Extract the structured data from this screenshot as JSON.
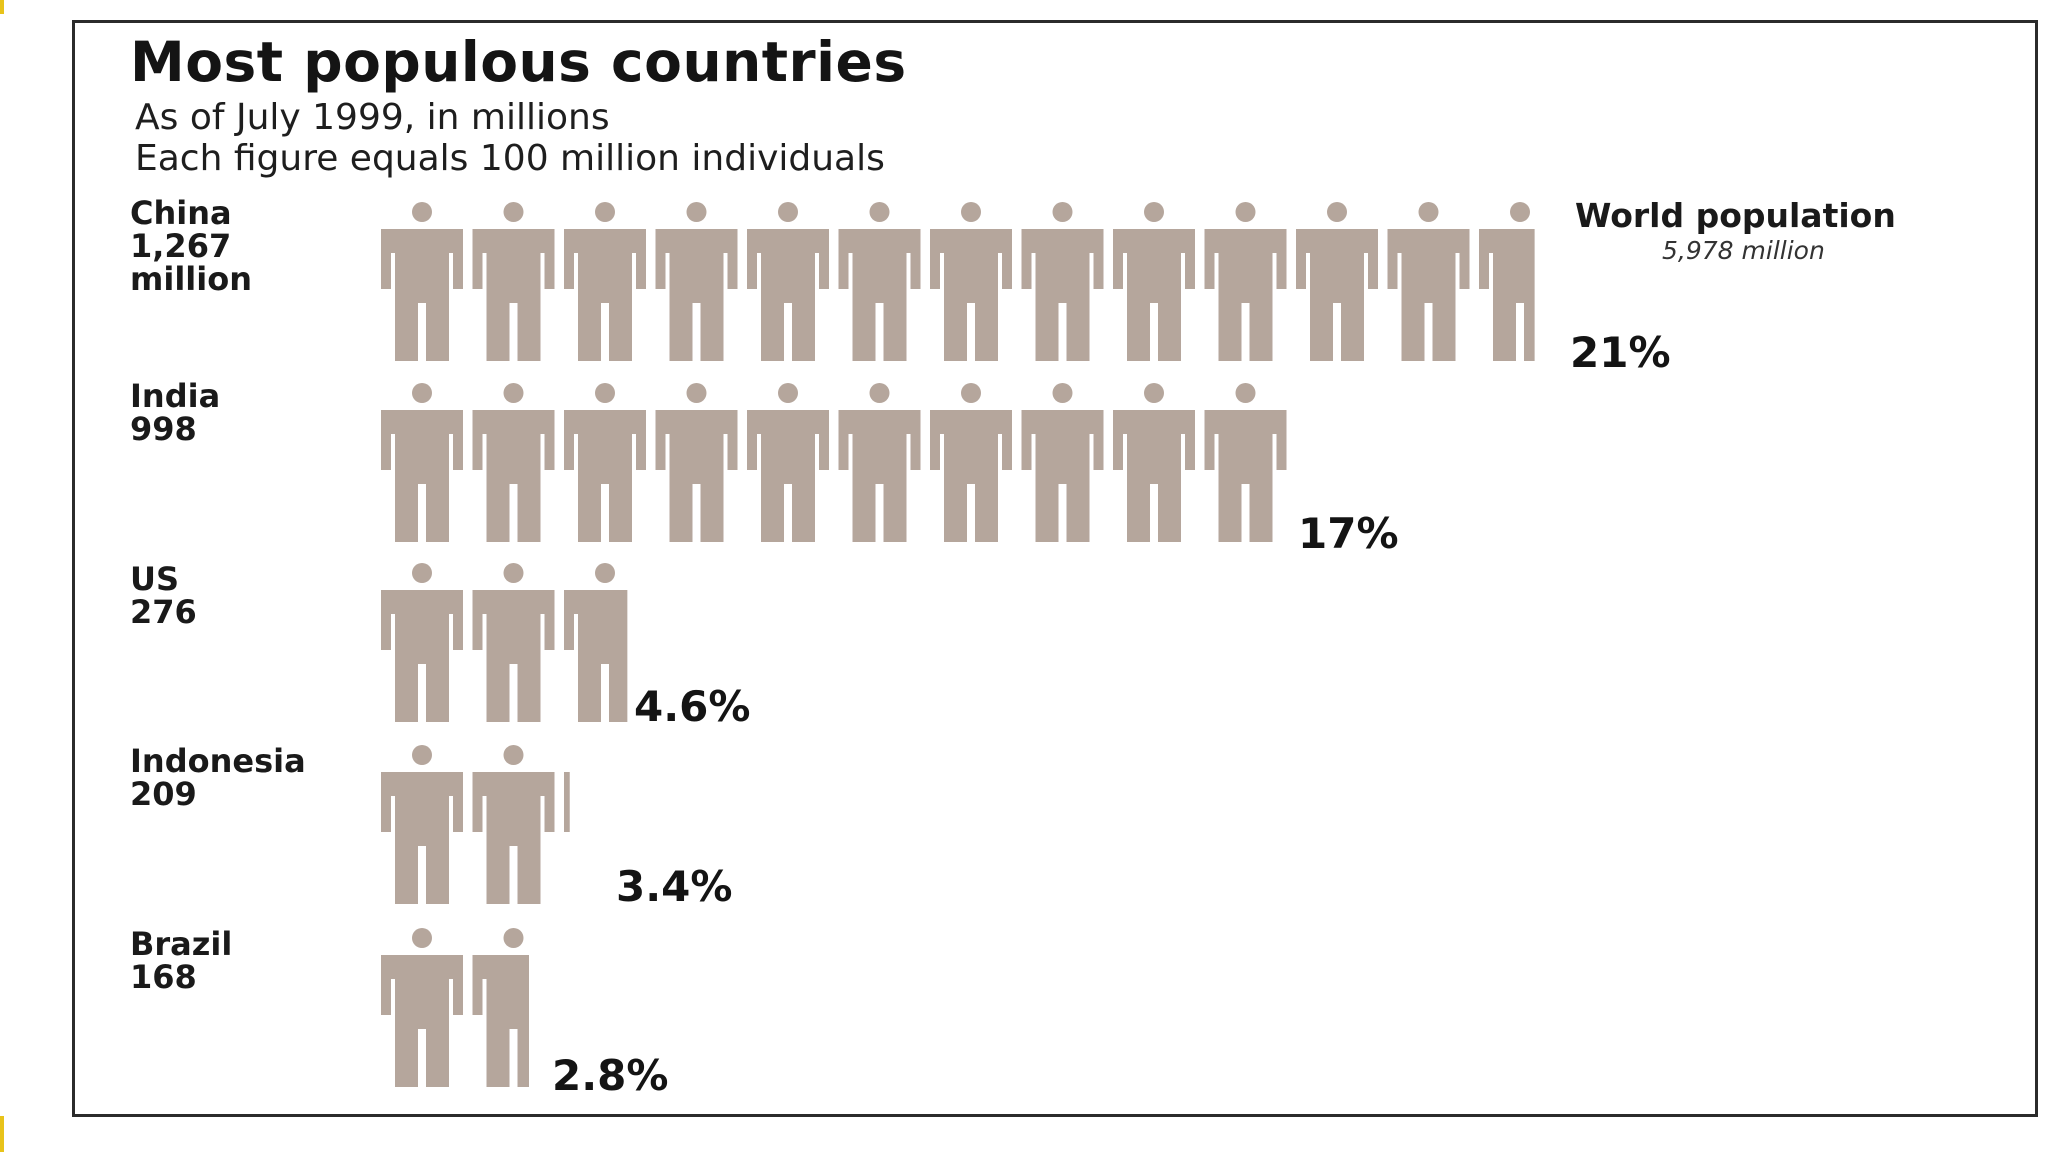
{
  "chart_data": {
    "type": "pictogram",
    "title": "Most populous countries",
    "subtitle": "As of July 1999, in millions",
    "note": "Each figure equals 100 million individuals",
    "unit_per_figure": 100,
    "categories": [
      "China",
      "India",
      "US",
      "Indonesia",
      "Brazil"
    ],
    "name_labels": [
      "China",
      "India",
      "US",
      "Indonesia",
      "Brazil"
    ],
    "value_labels": [
      "1,267",
      "998",
      "276",
      "209",
      "168"
    ],
    "unit_labels": [
      "million",
      "",
      "",
      "",
      ""
    ],
    "values": [
      1267,
      998,
      276,
      209,
      168
    ],
    "percent_labels": [
      "21%",
      "17%",
      "4.6%",
      "3.4%",
      "2.8%"
    ],
    "percents": [
      21,
      17,
      4.6,
      3.4,
      2.8
    ],
    "world_label": "World population",
    "world_value_label": "5,978 million",
    "world_value": 5978,
    "figure_color": "#b5a69c"
  }
}
